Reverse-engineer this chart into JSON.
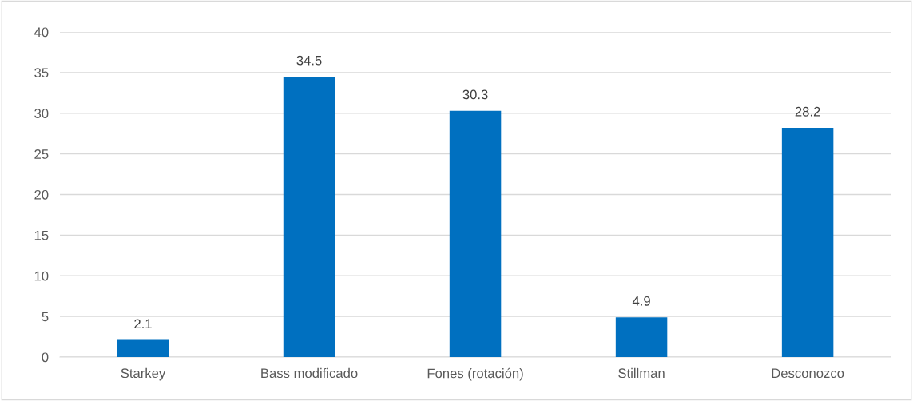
{
  "chart_data": {
    "type": "bar",
    "categories": [
      "Starkey",
      "Bass modificado",
      "Fones (rotación)",
      "Stillman",
      "Desconozco"
    ],
    "values": [
      2.1,
      34.5,
      30.3,
      4.9,
      28.2
    ],
    "color": "#0070c0",
    "ylim": [
      0,
      40
    ],
    "yticks": [
      0,
      5,
      10,
      15,
      20,
      25,
      30,
      35,
      40
    ],
    "grid": "y",
    "data_labels": true,
    "legend": false
  }
}
